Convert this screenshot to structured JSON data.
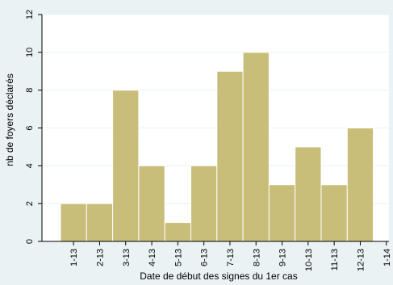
{
  "chart_data": {
    "type": "bar",
    "title": "",
    "xlabel": "Date de début des signes du 1er cas",
    "ylabel": "nb de foyers déclarés",
    "categories": [
      "1-13",
      "2-13",
      "3-13",
      "4-13",
      "5-13",
      "6-13",
      "7-13",
      "8-13",
      "9-13",
      "10-13",
      "11-13",
      "12-13"
    ],
    "x_tick_labels": [
      "1-13",
      "2-13",
      "3-13",
      "4-13",
      "5-13",
      "6-13",
      "7-13",
      "8-13",
      "9-13",
      "10-13",
      "11-13",
      "12-13",
      "1-14"
    ],
    "values": [
      2,
      2,
      8,
      4,
      1,
      4,
      9,
      10,
      3,
      5,
      3,
      6
    ],
    "y_ticks": [
      0,
      2,
      4,
      6,
      8,
      10,
      12
    ],
    "ylim": [
      0,
      12
    ],
    "grid": true,
    "colors": {
      "background": "#eaf2f3",
      "plot_background": "#ffffff",
      "bar_fill": "#c8be7a",
      "bar_stroke": "#ffffff",
      "grid": "#eaf2f3"
    }
  }
}
